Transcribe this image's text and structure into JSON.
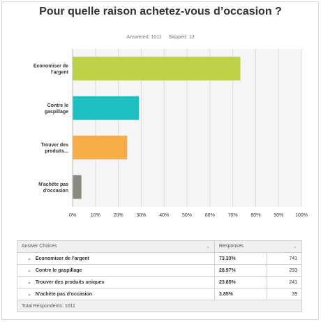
{
  "header": {
    "title": "Pour quelle raison achetez-vous d’occasion ?",
    "answered": "Answered: 1011",
    "skipped": "Skipped: 13"
  },
  "chart_data": {
    "type": "bar",
    "orientation": "horizontal",
    "categories": [
      [
        "Economiser de",
        "l'argent"
      ],
      [
        "Contre le",
        "gaspillage"
      ],
      [
        "Trouver des",
        "produits..."
      ],
      [
        "N'achète pas",
        "d'occasion"
      ]
    ],
    "values": [
      73.33,
      28.97,
      23.85,
      3.85
    ],
    "colors": [
      "#bfd149",
      "#1ebfbf",
      "#f7ad46",
      "#8a8a7c"
    ],
    "xlim": [
      0,
      100
    ],
    "x_ticks": [
      "0%",
      "10%",
      "20%",
      "30%",
      "40%",
      "50%",
      "60%",
      "70%",
      "80%",
      "90%",
      "100%"
    ],
    "grid": true
  },
  "table": {
    "headers": [
      "Answer Choices",
      "Responses"
    ],
    "rows": [
      {
        "choice": "Economiser de l'argent",
        "percent": "73.33%",
        "count": "741"
      },
      {
        "choice": "Contre le gaspillage",
        "percent": "28.97%",
        "count": "293"
      },
      {
        "choice": "Trouver des produits uniques",
        "percent": "23.85%",
        "count": "241"
      },
      {
        "choice": "N'achète pas d'occasion",
        "percent": "3.85%",
        "count": "39"
      }
    ],
    "total": "Total Respondents: 1011"
  }
}
